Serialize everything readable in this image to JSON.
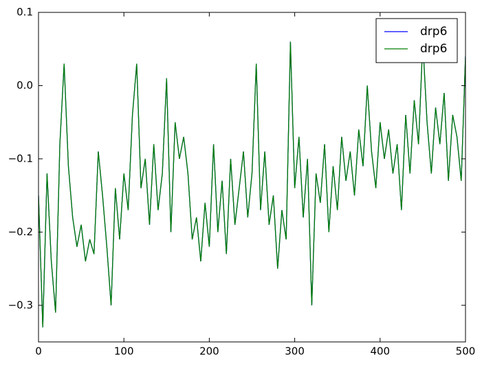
{
  "chart_data": {
    "type": "line",
    "x": [
      0,
      5,
      10,
      15,
      20,
      25,
      30,
      35,
      40,
      45,
      50,
      55,
      60,
      65,
      70,
      75,
      80,
      85,
      90,
      95,
      100,
      105,
      110,
      115,
      120,
      125,
      130,
      135,
      140,
      145,
      150,
      155,
      160,
      165,
      170,
      175,
      180,
      185,
      190,
      195,
      200,
      205,
      210,
      215,
      220,
      225,
      230,
      235,
      240,
      245,
      250,
      255,
      260,
      265,
      270,
      275,
      280,
      285,
      290,
      295,
      300,
      305,
      310,
      315,
      320,
      325,
      330,
      335,
      340,
      345,
      350,
      355,
      360,
      365,
      370,
      375,
      380,
      385,
      390,
      395,
      400,
      405,
      410,
      415,
      420,
      425,
      430,
      435,
      440,
      445,
      450,
      455,
      460,
      465,
      470,
      475,
      480,
      485,
      490,
      495,
      500
    ],
    "series": [
      {
        "name": "drp6",
        "color": "#0000ff",
        "values": [
          -0.15,
          -0.33,
          -0.12,
          -0.24,
          -0.31,
          -0.08,
          0.03,
          -0.11,
          -0.18,
          -0.22,
          -0.19,
          -0.24,
          -0.21,
          -0.23,
          -0.09,
          -0.15,
          -0.22,
          -0.3,
          -0.14,
          -0.21,
          -0.12,
          -0.17,
          -0.04,
          0.03,
          -0.14,
          -0.1,
          -0.19,
          -0.08,
          -0.17,
          -0.12,
          0.01,
          -0.2,
          -0.05,
          -0.1,
          -0.07,
          -0.12,
          -0.21,
          -0.18,
          -0.24,
          -0.16,
          -0.22,
          -0.08,
          -0.2,
          -0.13,
          -0.23,
          -0.1,
          -0.19,
          -0.14,
          -0.09,
          -0.18,
          -0.12,
          0.03,
          -0.17,
          -0.09,
          -0.19,
          -0.15,
          -0.25,
          -0.17,
          -0.21,
          0.06,
          -0.14,
          -0.07,
          -0.18,
          -0.1,
          -0.3,
          -0.12,
          -0.16,
          -0.08,
          -0.2,
          -0.11,
          -0.17,
          -0.07,
          -0.13,
          -0.09,
          -0.15,
          -0.06,
          -0.11,
          0.0,
          -0.09,
          -0.14,
          -0.05,
          -0.1,
          -0.06,
          -0.12,
          -0.08,
          -0.17,
          -0.04,
          -0.12,
          -0.02,
          -0.08,
          0.06,
          -0.05,
          -0.12,
          -0.03,
          -0.08,
          -0.01,
          -0.13,
          -0.04,
          -0.07,
          -0.13,
          0.04
        ]
      },
      {
        "name": "drp6",
        "color": "#007f00",
        "values": [
          -0.15,
          -0.33,
          -0.12,
          -0.24,
          -0.31,
          -0.08,
          0.03,
          -0.11,
          -0.18,
          -0.22,
          -0.19,
          -0.24,
          -0.21,
          -0.23,
          -0.09,
          -0.15,
          -0.22,
          -0.3,
          -0.14,
          -0.21,
          -0.12,
          -0.17,
          -0.04,
          0.03,
          -0.14,
          -0.1,
          -0.19,
          -0.08,
          -0.17,
          -0.12,
          0.01,
          -0.2,
          -0.05,
          -0.1,
          -0.07,
          -0.12,
          -0.21,
          -0.18,
          -0.24,
          -0.16,
          -0.22,
          -0.08,
          -0.2,
          -0.13,
          -0.23,
          -0.1,
          -0.19,
          -0.14,
          -0.09,
          -0.18,
          -0.12,
          0.03,
          -0.17,
          -0.09,
          -0.19,
          -0.15,
          -0.25,
          -0.17,
          -0.21,
          0.06,
          -0.14,
          -0.07,
          -0.18,
          -0.1,
          -0.3,
          -0.12,
          -0.16,
          -0.08,
          -0.2,
          -0.11,
          -0.17,
          -0.07,
          -0.13,
          -0.09,
          -0.15,
          -0.06,
          -0.11,
          0.0,
          -0.09,
          -0.14,
          -0.05,
          -0.1,
          -0.06,
          -0.12,
          -0.08,
          -0.17,
          -0.04,
          -0.12,
          -0.02,
          -0.08,
          0.06,
          -0.05,
          -0.12,
          -0.03,
          -0.08,
          -0.01,
          -0.13,
          -0.04,
          -0.07,
          -0.13,
          0.04
        ]
      }
    ],
    "xlim": [
      0,
      500
    ],
    "xticks": [
      0,
      100,
      200,
      300,
      400,
      500
    ],
    "ylim": [
      -0.35,
      0.1
    ],
    "yticks": [
      {
        "value": -0.3,
        "label": "−0.3"
      },
      {
        "value": -0.2,
        "label": "−0.2"
      },
      {
        "value": -0.1,
        "label": "−0.1"
      },
      {
        "value": 0,
        "label": "0.0"
      },
      0.1
    ],
    "legend": "upper right"
  }
}
